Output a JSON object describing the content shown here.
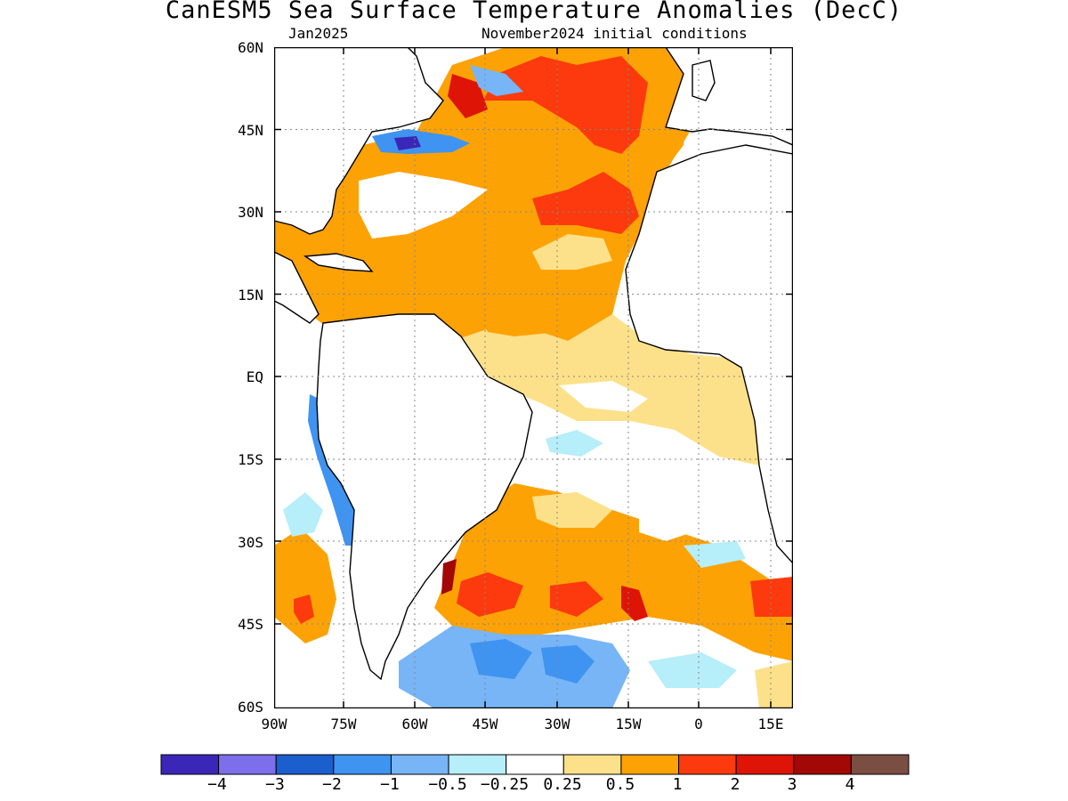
{
  "title": "CanESM5 Sea Surface Temperature Anomalies (DecC)",
  "subtitle_left": "Jan2025",
  "subtitle_right": "November2024 initial conditions",
  "y_ticks": [
    "60N",
    "45N",
    "30N",
    "15N",
    "EQ",
    "15S",
    "30S",
    "45S",
    "60S"
  ],
  "x_ticks": [
    "90W",
    "75W",
    "60W",
    "45W",
    "30W",
    "15W",
    "0",
    "15E"
  ],
  "colorbar": {
    "labels": [
      "−4",
      "−3",
      "−2",
      "−1",
      "−0.5",
      "−0.25",
      "0.25",
      "0.5",
      "1",
      "2",
      "3",
      "4"
    ],
    "colors": [
      "#3a27b8",
      "#7d6fec",
      "#1b5fcf",
      "#3f93f1",
      "#77b5f6",
      "#b6eef9",
      "#ffffff",
      "#fde18a",
      "#fda205",
      "#fc3a0d",
      "#dd1406",
      "#a20805",
      "#7a4e42"
    ]
  },
  "map_data": {
    "region": "Atlantic Ocean",
    "lon_range": [
      "90W",
      "18E"
    ],
    "lat_range": [
      "60S",
      "60N"
    ],
    "projection": "cylindrical",
    "grid": "dotted gray every 15 degrees"
  }
}
